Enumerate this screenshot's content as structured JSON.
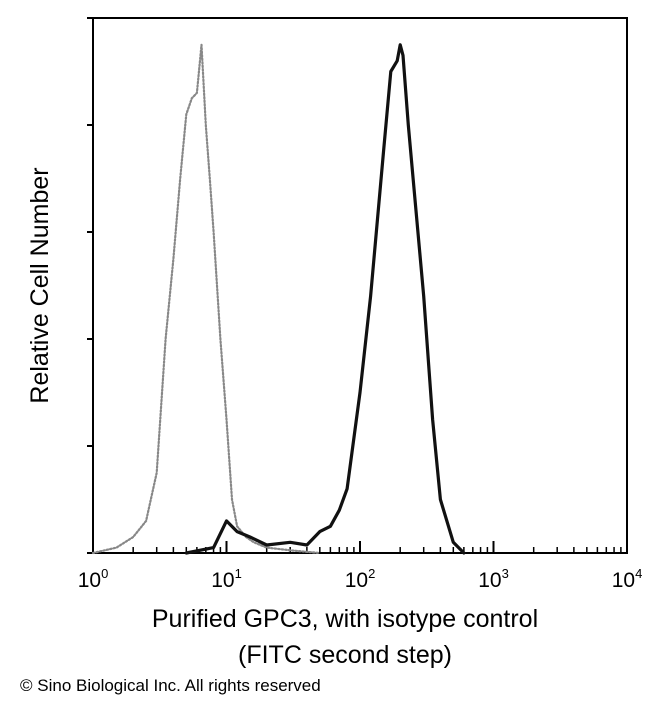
{
  "chart_data": {
    "type": "line",
    "title": "",
    "xlabel_line1": "Purified GPC3, with isotype control",
    "xlabel_line2": "(FITC second step)",
    "ylabel": "Relative Cell Number",
    "x_scale": "log",
    "xlim": [
      1,
      10000
    ],
    "ylim": [
      0,
      100
    ],
    "x_ticks": [
      {
        "base": "10",
        "exp": "0"
      },
      {
        "base": "10",
        "exp": "1"
      },
      {
        "base": "10",
        "exp": "2"
      },
      {
        "base": "10",
        "exp": "3"
      },
      {
        "base": "10",
        "exp": "4"
      }
    ],
    "y_ticks": [
      0,
      20,
      40,
      60,
      80,
      100
    ],
    "grid": false,
    "legend": "none",
    "series": [
      {
        "style": "dotted",
        "color": "#888888",
        "x": [
          1,
          1.5,
          2,
          2.5,
          3,
          3.5,
          4,
          4.5,
          5,
          5.5,
          6,
          6.5,
          7,
          7.5,
          8,
          9,
          10,
          11,
          12,
          14,
          16,
          20,
          30,
          50
        ],
        "y": [
          0,
          1,
          3,
          6,
          15,
          40,
          55,
          70,
          82,
          85,
          86,
          95,
          80,
          70,
          60,
          40,
          25,
          10,
          5,
          3,
          2,
          1,
          0.5,
          0
        ]
      },
      {
        "style": "solid",
        "color": "#111111",
        "x": [
          5,
          8,
          10,
          12,
          15,
          20,
          30,
          40,
          50,
          60,
          70,
          80,
          100,
          120,
          150,
          170,
          190,
          200,
          210,
          230,
          250,
          300,
          350,
          400,
          500,
          600
        ],
        "y": [
          0,
          1,
          6,
          4,
          3,
          1.5,
          2,
          1.5,
          4,
          5,
          8,
          12,
          30,
          48,
          75,
          90,
          92,
          95,
          93,
          80,
          70,
          48,
          25,
          10,
          2,
          0
        ]
      }
    ]
  },
  "copyright": "© Sino Biological Inc. All rights reserved"
}
